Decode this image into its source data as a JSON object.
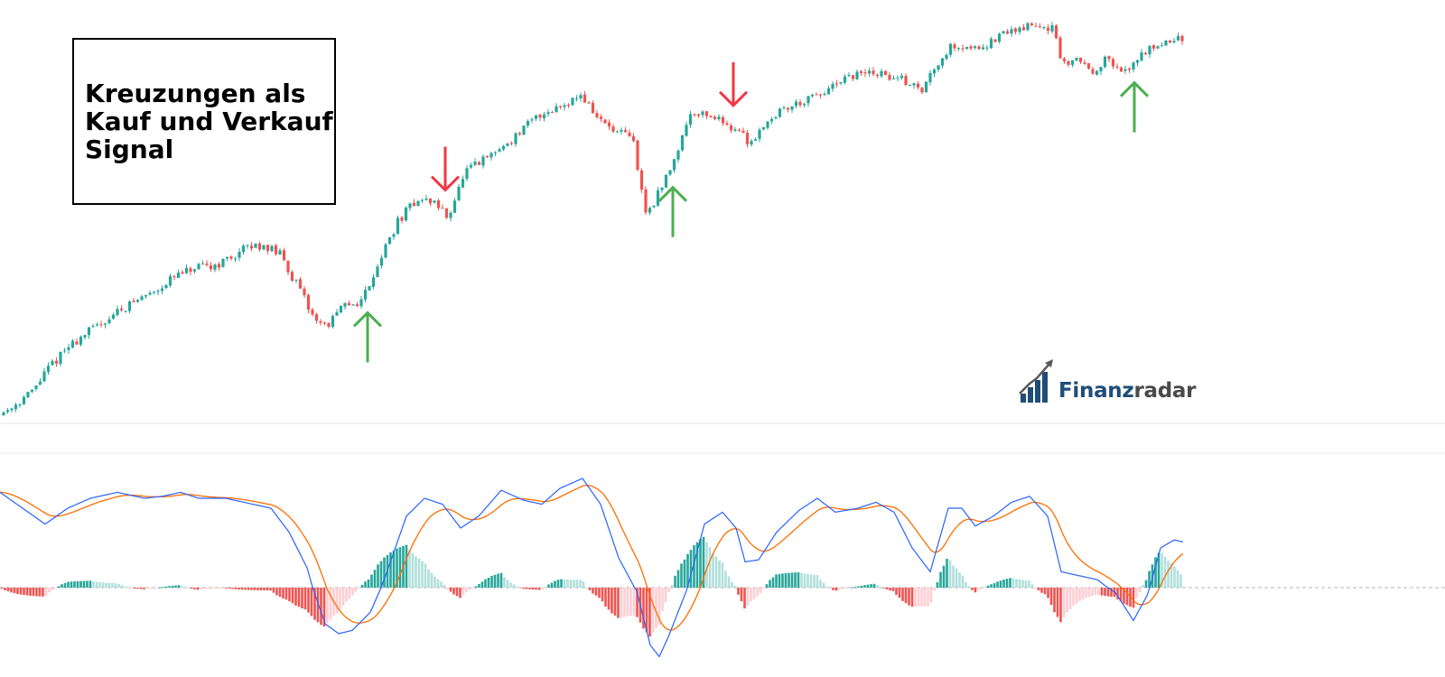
{
  "annotation": {
    "title": "Kreuzungen als\nKauf und Verkauf\nSignal"
  },
  "logo": {
    "part1": "Finanz",
    "part2": "radar",
    "icon": "rising-bar-chart-logo-icon"
  },
  "colors": {
    "up": "#26a69a",
    "down": "#ef5350",
    "hist_up_strong": "#26a69a",
    "hist_up_weak": "#b2dfdb",
    "hist_down_strong": "#ef5350",
    "hist_down_weak": "#ffcdd2",
    "macd_line": "#2962ff",
    "signal_line": "#ff6d00",
    "buy_arrow": "#4caf50",
    "sell_arrow": "#f23645"
  },
  "chart_data": {
    "type": "candlestick-with-macd",
    "title": "",
    "xlabel": "",
    "ylabel": "",
    "grid": false,
    "price_path": [
      [
        0,
        0
      ],
      [
        20,
        16
      ],
      [
        40,
        34
      ],
      [
        60,
        68
      ],
      [
        80,
        93
      ],
      [
        100,
        112
      ],
      [
        120,
        128
      ],
      [
        140,
        145
      ],
      [
        160,
        158
      ],
      [
        180,
        172
      ],
      [
        200,
        188
      ],
      [
        220,
        197
      ],
      [
        240,
        201
      ],
      [
        260,
        212
      ],
      [
        275,
        224
      ],
      [
        295,
        230
      ],
      [
        315,
        216
      ],
      [
        335,
        172
      ],
      [
        350,
        136
      ],
      [
        365,
        120
      ],
      [
        385,
        147
      ],
      [
        405,
        155
      ],
      [
        425,
        210
      ],
      [
        445,
        260
      ],
      [
        465,
        289
      ],
      [
        485,
        287
      ],
      [
        500,
        266
      ],
      [
        520,
        326
      ],
      [
        545,
        346
      ],
      [
        570,
        368
      ],
      [
        600,
        401
      ],
      [
        630,
        418
      ],
      [
        648,
        429
      ],
      [
        665,
        400
      ],
      [
        685,
        379
      ],
      [
        705,
        372
      ],
      [
        712,
        320
      ],
      [
        720,
        270
      ],
      [
        735,
        300
      ],
      [
        750,
        341
      ],
      [
        770,
        408
      ],
      [
        790,
        402
      ],
      [
        810,
        390
      ],
      [
        825,
        378
      ],
      [
        835,
        364
      ],
      [
        850,
        390
      ],
      [
        870,
        409
      ],
      [
        890,
        419
      ],
      [
        910,
        427
      ],
      [
        930,
        441
      ],
      [
        950,
        455
      ],
      [
        970,
        459
      ],
      [
        990,
        453
      ],
      [
        1010,
        447
      ],
      [
        1025,
        433
      ],
      [
        1040,
        469
      ],
      [
        1060,
        496
      ],
      [
        1080,
        492
      ],
      [
        1100,
        497
      ],
      [
        1120,
        513
      ],
      [
        1140,
        520
      ],
      [
        1160,
        522
      ],
      [
        1172,
        516
      ],
      [
        1180,
        465
      ],
      [
        1195,
        479
      ],
      [
        1215,
        461
      ],
      [
        1230,
        477
      ],
      [
        1248,
        455
      ],
      [
        1265,
        480
      ],
      [
        1285,
        497
      ],
      [
        1310,
        503
      ]
    ],
    "macd_path": [
      [
        0,
        0.48
      ],
      [
        25,
        0.4
      ],
      [
        50,
        0.32
      ],
      [
        75,
        0.4
      ],
      [
        100,
        0.45
      ],
      [
        130,
        0.48
      ],
      [
        160,
        0.45
      ],
      [
        180,
        0.46
      ],
      [
        200,
        0.48
      ],
      [
        220,
        0.45
      ],
      [
        250,
        0.45
      ],
      [
        270,
        0.43
      ],
      [
        300,
        0.4
      ],
      [
        320,
        0.28
      ],
      [
        340,
        0.1
      ],
      [
        360,
        -0.22
      ],
      [
        375,
        -0.28
      ],
      [
        390,
        -0.26
      ],
      [
        410,
        -0.15
      ],
      [
        430,
        0.1
      ],
      [
        450,
        0.36
      ],
      [
        470,
        0.45
      ],
      [
        490,
        0.42
      ],
      [
        510,
        0.3
      ],
      [
        530,
        0.36
      ],
      [
        555,
        0.49
      ],
      [
        580,
        0.44
      ],
      [
        600,
        0.42
      ],
      [
        620,
        0.5
      ],
      [
        645,
        0.55
      ],
      [
        665,
        0.42
      ],
      [
        685,
        0.15
      ],
      [
        705,
        -0.02
      ],
      [
        720,
        -0.35
      ],
      [
        730,
        -0.42
      ],
      [
        740,
        -0.3
      ],
      [
        760,
        -0.02
      ],
      [
        780,
        0.32
      ],
      [
        800,
        0.38
      ],
      [
        815,
        0.3
      ],
      [
        825,
        0.13
      ],
      [
        840,
        0.14
      ],
      [
        860,
        0.28
      ],
      [
        885,
        0.39
      ],
      [
        905,
        0.45
      ],
      [
        925,
        0.38
      ],
      [
        950,
        0.4
      ],
      [
        970,
        0.43
      ],
      [
        990,
        0.38
      ],
      [
        1010,
        0.2
      ],
      [
        1030,
        0.08
      ],
      [
        1050,
        0.4
      ],
      [
        1065,
        0.4
      ],
      [
        1080,
        0.31
      ],
      [
        1100,
        0.36
      ],
      [
        1120,
        0.43
      ],
      [
        1140,
        0.46
      ],
      [
        1160,
        0.36
      ],
      [
        1175,
        0.08
      ],
      [
        1195,
        0.06
      ],
      [
        1215,
        0.04
      ],
      [
        1235,
        -0.03
      ],
      [
        1255,
        -0.2
      ],
      [
        1270,
        -0.05
      ],
      [
        1285,
        0.2
      ],
      [
        1300,
        0.24
      ],
      [
        1310,
        0.23
      ]
    ],
    "macd_range": [
      -0.5,
      0.55
    ],
    "signals": [
      {
        "type": "buy",
        "x": 407
      },
      {
        "type": "sell",
        "x": 493
      },
      {
        "type": "buy",
        "x": 745
      },
      {
        "type": "sell",
        "x": 812
      },
      {
        "type": "buy",
        "x": 1256
      }
    ]
  }
}
